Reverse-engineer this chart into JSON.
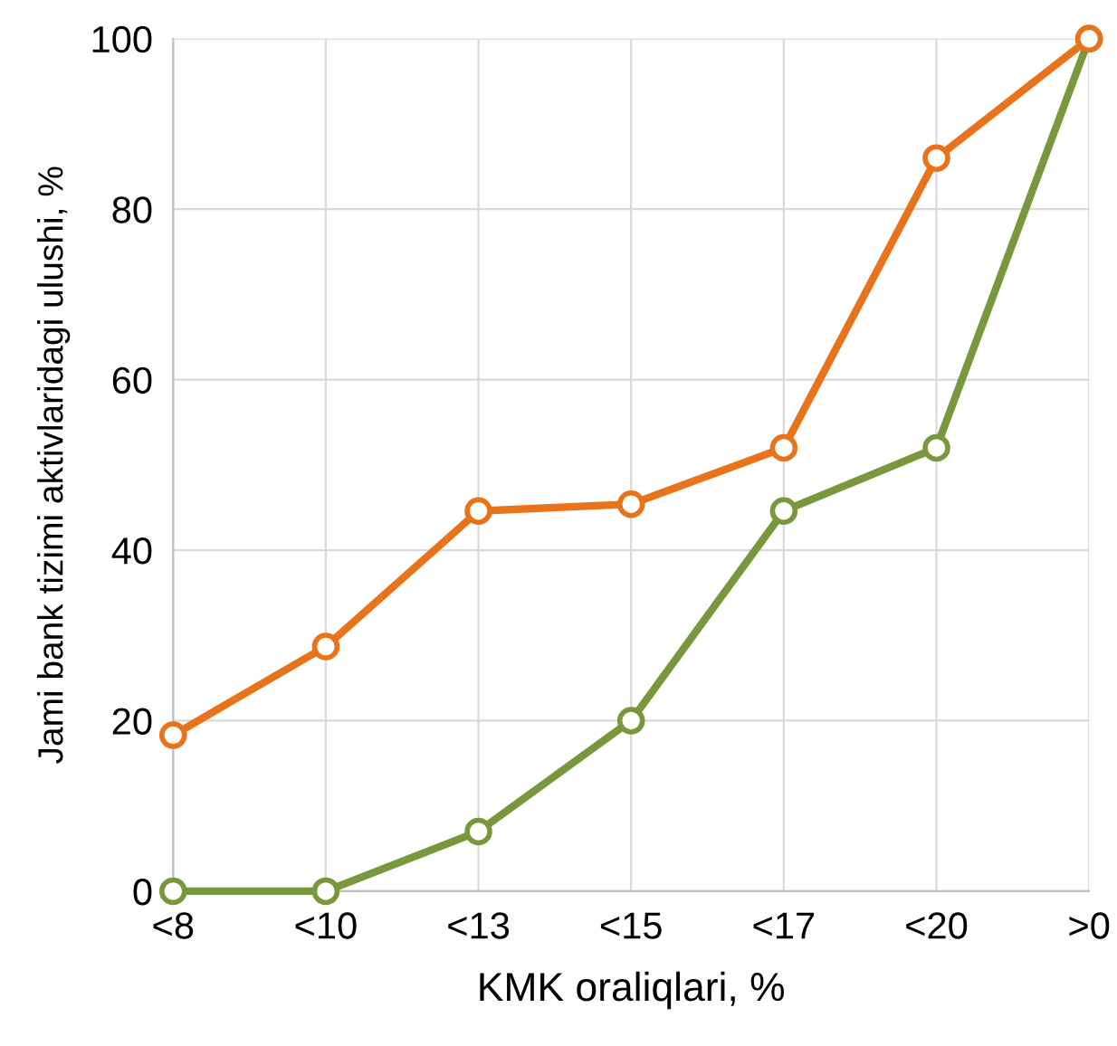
{
  "chart_data": {
    "type": "line",
    "xlabel": "KMK oraliqlari, %",
    "ylabel": "Jami bank tizimi aktivlaridagi ulushi, %",
    "categories": [
      "<8",
      "<10",
      "<13",
      "<15",
      "<17",
      "<20",
      ">0"
    ],
    "series": [
      {
        "color": "#e8731a",
        "values": [
          18.3,
          28.7,
          44.6,
          45.4,
          52.0,
          86.0,
          100
        ]
      },
      {
        "color": "#77983c",
        "values": [
          0,
          0,
          7.0,
          20.0,
          44.6,
          52.0,
          100
        ]
      }
    ],
    "ylim": [
      0,
      100
    ],
    "yticks": [
      0,
      20,
      40,
      60,
      80,
      100
    ],
    "grid": true,
    "marker": "circle",
    "line_style": "solid",
    "legend": false
  }
}
